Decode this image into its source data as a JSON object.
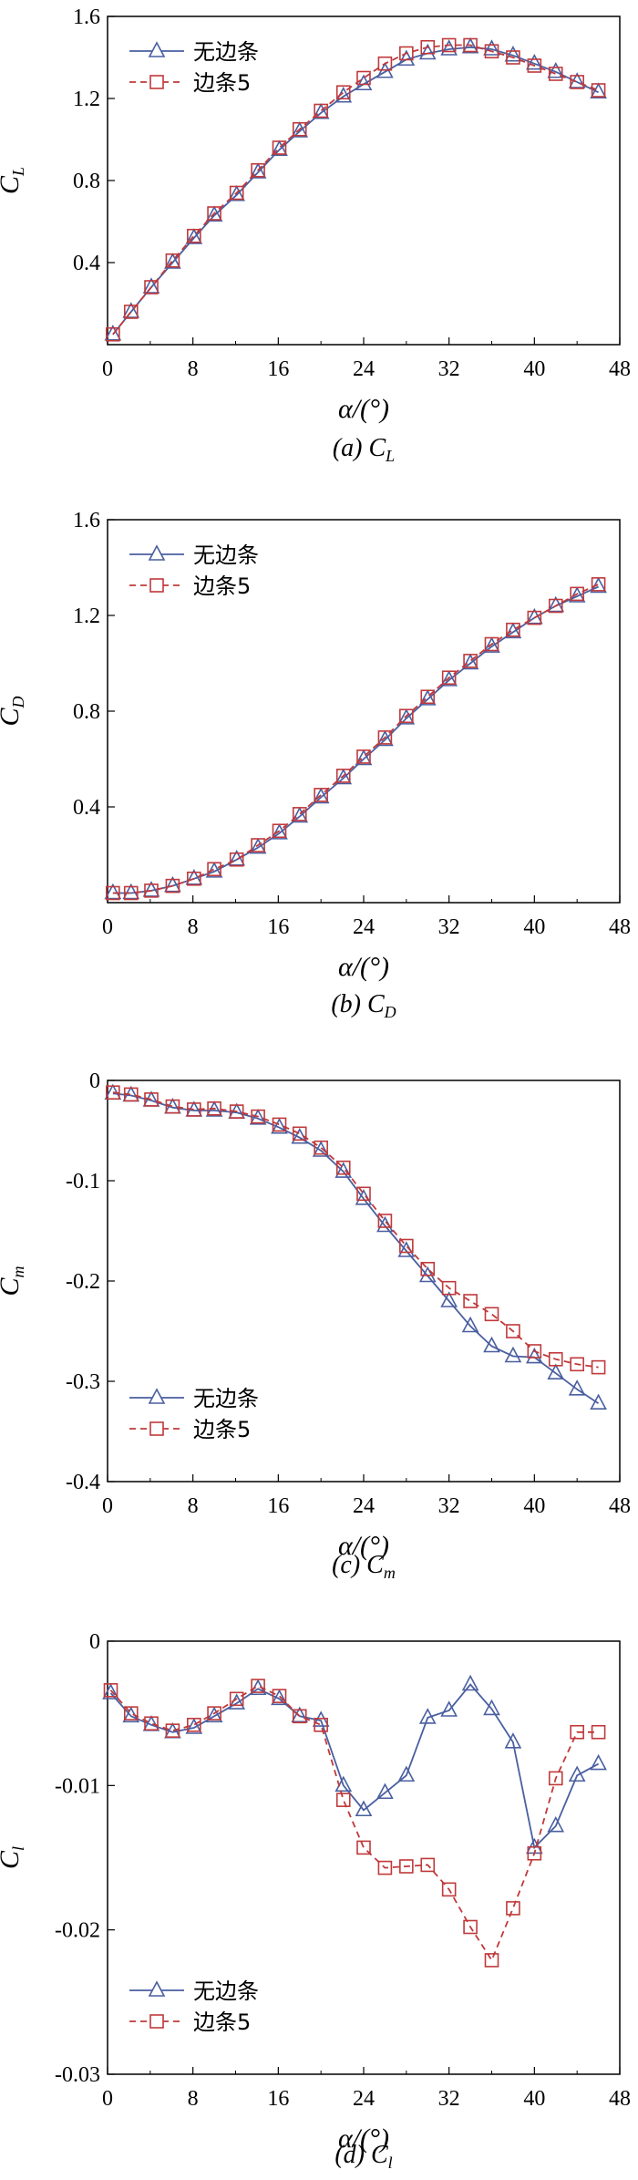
{
  "colors": {
    "series1": "#4a5fa0",
    "series2": "#c0393b"
  },
  "chart_data": [
    {
      "type": "line",
      "ylabel_main": "C",
      "ylabel_sub": "L",
      "xlabel": "α/(°)",
      "caption": "(a) C",
      "caption_sub": "L",
      "xlim": [
        0,
        48
      ],
      "ylim": [
        0,
        1.6
      ],
      "xticks": [
        0,
        8,
        16,
        24,
        32,
        40,
        48
      ],
      "xtick_labels": [
        "0",
        "8",
        "16",
        "24",
        "32",
        "40",
        "48"
      ],
      "yticks": [
        0.4,
        0.8,
        1.2,
        1.6
      ],
      "ytick_labels": [
        "0.4",
        "0.8",
        "1.2",
        "1.6"
      ],
      "legend_position": "top-left",
      "series": [
        {
          "name": "无边条",
          "marker": "triangle",
          "x": [
            0.5,
            2.2,
            4.1,
            6.1,
            8.1,
            10.0,
            12.1,
            14.1,
            16.1,
            18.0,
            20.0,
            22.1,
            24.0,
            26.0,
            28.0,
            30.0,
            32.0,
            34.0,
            36.0,
            38.0,
            40.0,
            42.0,
            44.0,
            46.0
          ],
          "y": [
            0.05,
            0.16,
            0.28,
            0.4,
            0.52,
            0.63,
            0.73,
            0.84,
            0.95,
            1.04,
            1.13,
            1.21,
            1.27,
            1.33,
            1.39,
            1.42,
            1.44,
            1.45,
            1.44,
            1.41,
            1.37,
            1.33,
            1.28,
            1.23
          ]
        },
        {
          "name": "边条5",
          "marker": "square",
          "x": [
            0.5,
            2.2,
            4.1,
            6.1,
            8.1,
            10.0,
            12.1,
            14.1,
            16.1,
            18.0,
            20.0,
            22.1,
            24.0,
            26.0,
            28.0,
            30.0,
            32.0,
            34.0,
            36.0,
            38.0,
            40.0,
            42.0,
            44.0,
            46.0
          ],
          "y": [
            0.05,
            0.16,
            0.28,
            0.41,
            0.53,
            0.64,
            0.74,
            0.85,
            0.96,
            1.05,
            1.14,
            1.23,
            1.3,
            1.37,
            1.42,
            1.45,
            1.46,
            1.46,
            1.43,
            1.4,
            1.36,
            1.32,
            1.28,
            1.24
          ]
        }
      ]
    },
    {
      "type": "line",
      "ylabel_main": "C",
      "ylabel_sub": "D",
      "xlabel": "α/(°)",
      "caption": "(b) C",
      "caption_sub": "D",
      "xlim": [
        0,
        48
      ],
      "ylim": [
        0,
        1.6
      ],
      "xticks": [
        0,
        8,
        16,
        24,
        32,
        40,
        48
      ],
      "xtick_labels": [
        "0",
        "8",
        "16",
        "24",
        "32",
        "40",
        "48"
      ],
      "yticks": [
        0.4,
        0.8,
        1.2,
        1.6
      ],
      "ytick_labels": [
        "0.4",
        "0.8",
        "1.2",
        "1.6"
      ],
      "legend_position": "top-left",
      "series": [
        {
          "name": "无边条",
          "marker": "triangle",
          "x": [
            0.5,
            2.2,
            4.1,
            6.1,
            8.1,
            10.0,
            12.1,
            14.1,
            16.1,
            18.0,
            20.0,
            22.1,
            24.0,
            26.0,
            28.0,
            30.0,
            32.0,
            34.0,
            36.0,
            38.0,
            40.0,
            42.0,
            44.0,
            46.0
          ],
          "y": [
            0.04,
            0.04,
            0.05,
            0.07,
            0.1,
            0.13,
            0.18,
            0.23,
            0.29,
            0.36,
            0.44,
            0.52,
            0.6,
            0.68,
            0.77,
            0.85,
            0.93,
            1.0,
            1.07,
            1.13,
            1.19,
            1.24,
            1.28,
            1.32
          ]
        },
        {
          "name": "边条5",
          "marker": "square",
          "x": [
            0.5,
            2.2,
            4.1,
            6.1,
            8.1,
            10.0,
            12.1,
            14.1,
            16.1,
            18.0,
            20.0,
            22.1,
            24.0,
            26.0,
            28.0,
            30.0,
            32.0,
            34.0,
            36.0,
            38.0,
            40.0,
            42.0,
            44.0,
            46.0
          ],
          "y": [
            0.04,
            0.04,
            0.05,
            0.07,
            0.1,
            0.14,
            0.18,
            0.24,
            0.3,
            0.37,
            0.45,
            0.53,
            0.61,
            0.69,
            0.78,
            0.86,
            0.94,
            1.01,
            1.08,
            1.14,
            1.19,
            1.24,
            1.29,
            1.33
          ]
        }
      ]
    },
    {
      "type": "line",
      "ylabel_main": "C",
      "ylabel_sub": "m",
      "xlabel": "α/(°)",
      "caption": "(c) C",
      "caption_sub": "m",
      "xlim": [
        0,
        48
      ],
      "ylim": [
        -0.4,
        0
      ],
      "xticks": [
        0,
        8,
        16,
        24,
        32,
        40,
        48
      ],
      "xtick_labels": [
        "0",
        "8",
        "16",
        "24",
        "32",
        "40",
        "48"
      ],
      "yticks": [
        -0.4,
        -0.3,
        -0.2,
        -0.1,
        0
      ],
      "ytick_labels": [
        "-0.4",
        "-0.3",
        "-0.2",
        "-0.1",
        "0"
      ],
      "legend_position": "bottom-left",
      "series": [
        {
          "name": "无边条",
          "marker": "triangle",
          "x": [
            0.5,
            2.2,
            4.1,
            6.1,
            8.1,
            10.0,
            12.1,
            14.1,
            16.1,
            18.0,
            20.0,
            22.1,
            24.0,
            26.0,
            28.0,
            30.0,
            32.0,
            34.0,
            36.0,
            38.0,
            40.0,
            42.0,
            44.0,
            46.0
          ],
          "y": [
            -0.013,
            -0.015,
            -0.02,
            -0.027,
            -0.03,
            -0.03,
            -0.032,
            -0.038,
            -0.047,
            -0.057,
            -0.07,
            -0.091,
            -0.118,
            -0.145,
            -0.17,
            -0.195,
            -0.22,
            -0.245,
            -0.265,
            -0.275,
            -0.276,
            -0.292,
            -0.308,
            -0.322
          ]
        },
        {
          "name": "边条5",
          "marker": "square",
          "x": [
            0.5,
            2.2,
            4.1,
            6.1,
            8.1,
            10.0,
            12.1,
            14.1,
            16.1,
            18.0,
            20.0,
            22.1,
            24.0,
            26.0,
            28.0,
            30.0,
            32.0,
            34.0,
            36.0,
            38.0,
            40.0,
            42.0,
            44.0,
            46.0
          ],
          "y": [
            -0.012,
            -0.014,
            -0.019,
            -0.026,
            -0.029,
            -0.028,
            -0.031,
            -0.036,
            -0.044,
            -0.053,
            -0.067,
            -0.087,
            -0.113,
            -0.14,
            -0.165,
            -0.188,
            -0.207,
            -0.22,
            -0.233,
            -0.25,
            -0.27,
            -0.278,
            -0.283,
            -0.286
          ]
        }
      ]
    },
    {
      "type": "line",
      "ylabel_main": "C",
      "ylabel_sub": "l",
      "xlabel": "α/(°)",
      "caption": "(d) C",
      "caption_sub": "l",
      "xlim": [
        0,
        48
      ],
      "ylim": [
        -0.03,
        0
      ],
      "xticks": [
        0,
        8,
        16,
        24,
        32,
        40,
        48
      ],
      "xtick_labels": [
        "0",
        "8",
        "16",
        "24",
        "32",
        "40",
        "48"
      ],
      "yticks": [
        -0.03,
        -0.02,
        -0.01,
        0
      ],
      "ytick_labels": [
        "-0.03",
        "-0.02",
        "-0.01",
        "0"
      ],
      "legend_position": "bottom-left",
      "series": [
        {
          "name": "无边条",
          "marker": "triangle",
          "x": [
            0.3,
            2.2,
            4.1,
            6.1,
            8.1,
            10.0,
            12.1,
            14.1,
            16.1,
            18.0,
            20.0,
            22.1,
            24.0,
            26.0,
            28.0,
            30.0,
            32.0,
            34.0,
            36.0,
            38.0,
            40.0,
            42.0,
            44.0,
            46.0
          ],
          "y": [
            -0.0036,
            -0.0052,
            -0.0058,
            -0.0063,
            -0.006,
            -0.0052,
            -0.0043,
            -0.0033,
            -0.004,
            -0.0052,
            -0.0055,
            -0.01,
            -0.0117,
            -0.0105,
            -0.0093,
            -0.0053,
            -0.0048,
            -0.003,
            -0.0047,
            -0.007,
            -0.0143,
            -0.0128,
            -0.0093,
            -0.0085
          ]
        },
        {
          "name": "边条5",
          "marker": "square",
          "x": [
            0.3,
            2.2,
            4.1,
            6.1,
            8.1,
            10.0,
            12.1,
            14.1,
            16.1,
            18.0,
            20.0,
            22.1,
            24.0,
            26.0,
            28.0,
            30.0,
            32.0,
            34.0,
            36.0,
            38.0,
            40.0,
            42.0,
            44.0,
            46.0
          ],
          "y": [
            -0.0034,
            -0.005,
            -0.0057,
            -0.0062,
            -0.0058,
            -0.005,
            -0.004,
            -0.0031,
            -0.0038,
            -0.0052,
            -0.0058,
            -0.011,
            -0.0143,
            -0.0157,
            -0.0156,
            -0.0155,
            -0.0172,
            -0.0198,
            -0.0221,
            -0.0185,
            -0.0147,
            -0.0095,
            -0.0063,
            -0.0063
          ]
        }
      ]
    }
  ]
}
